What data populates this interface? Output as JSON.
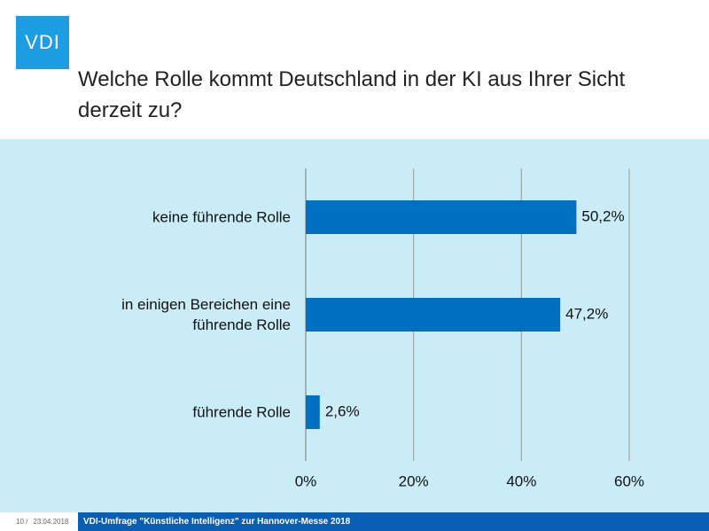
{
  "logo": "VDI",
  "title": "Welche Rolle kommt Deutschland in der KI aus Ihrer Sicht derzeit zu?",
  "footer": {
    "page": "10 /",
    "date": "23.04.2018",
    "text": "VDI-Umfrage \"Künstliche Intelligenz\" zur Hannover-Messe 2018"
  },
  "chart_data": {
    "type": "barh",
    "categories": [
      "keine führende Rolle",
      "in einigen Bereichen eine führende Rolle",
      "führende Rolle"
    ],
    "values": [
      50.2,
      47.2,
      2.6
    ],
    "value_labels": [
      "50,2%",
      "47,2%",
      "2,6%"
    ],
    "color": "#0070c0",
    "xlim": [
      0,
      60
    ],
    "xticks": [
      {
        "value": 0,
        "label": "0%"
      },
      {
        "value": 20,
        "label": "20%"
      },
      {
        "value": 40,
        "label": "40%"
      },
      {
        "value": 60,
        "label": "60%"
      }
    ],
    "grid": true
  }
}
